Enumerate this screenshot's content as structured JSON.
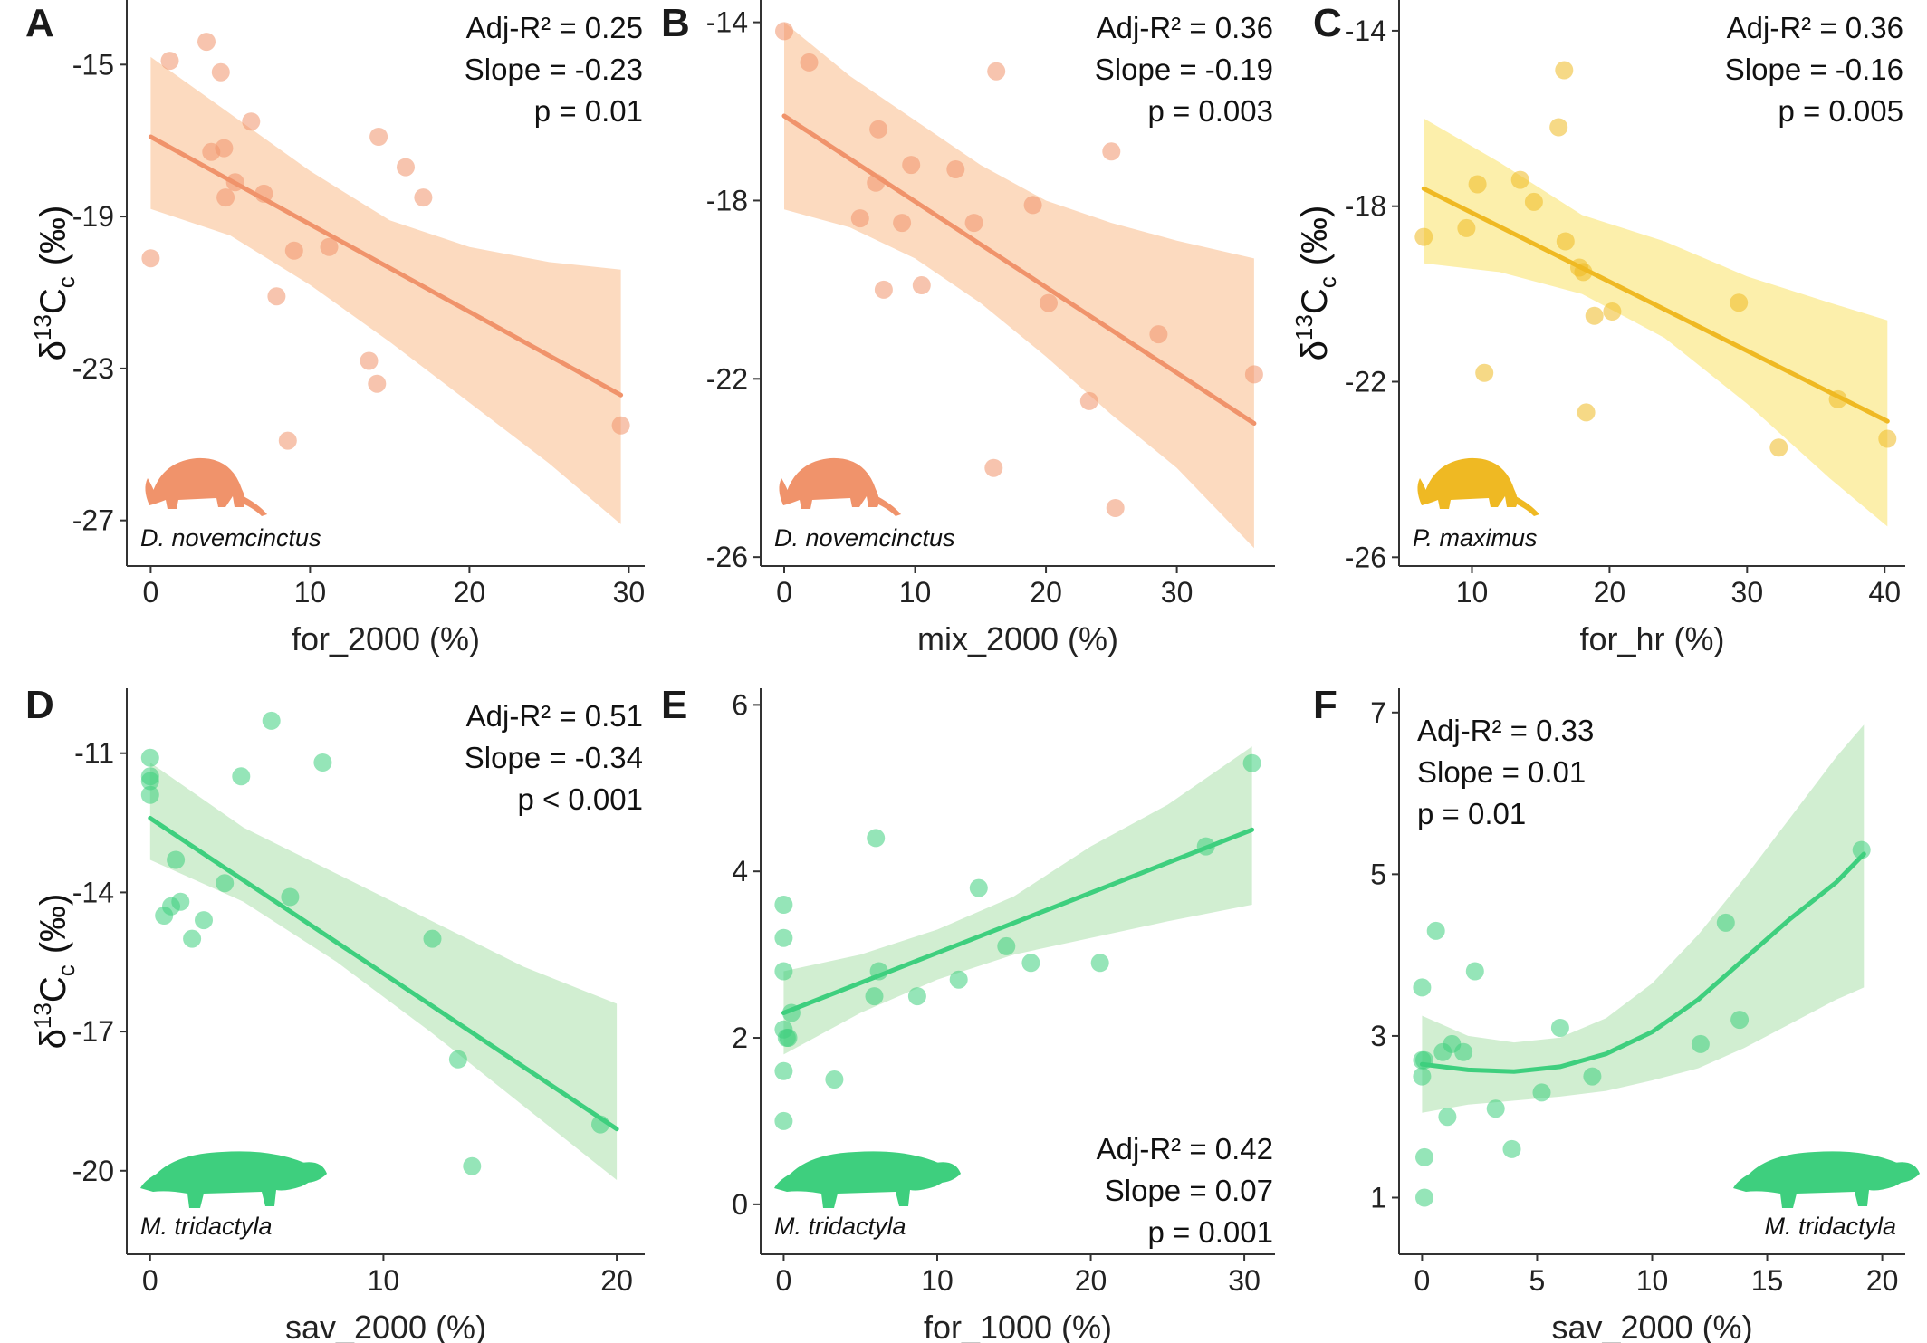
{
  "figure": {
    "ylabel": {
      "delta": "δ",
      "sup": "13",
      "main": "C",
      "sub": "c",
      "unit": "(‰)"
    }
  },
  "chart_data": [
    {
      "panel": "A",
      "type": "scatter",
      "fit": "linear",
      "color": "#f0936b",
      "band_color": "#fcd3b4",
      "species": "D. novemcinctus",
      "silhouette": "armadillo",
      "xlabel": "for_2000 (%)",
      "xlim": [
        -1.5,
        31
      ],
      "ylim": [
        -28.2,
        -13.3
      ],
      "xticks": [
        0,
        10,
        20,
        30
      ],
      "yticks": [
        -15,
        -19,
        -23,
        -27
      ],
      "x": [
        0,
        1.2,
        3.5,
        4.4,
        3.8,
        4.6,
        4.7,
        5.3,
        6.3,
        7.1,
        7.9,
        8.6,
        9.0,
        11.2,
        13.7,
        14.2,
        14.3,
        16.0,
        17.1,
        29.5
      ],
      "y": [
        -20.1,
        -14.9,
        -14.4,
        -15.2,
        -17.3,
        -17.2,
        -18.5,
        -18.1,
        -16.5,
        -18.4,
        -21.1,
        -24.9,
        -19.9,
        -19.8,
        -22.8,
        -23.4,
        -16.9,
        -17.7,
        -18.5,
        -24.5
      ],
      "fit_x": [
        0,
        29.5
      ],
      "fit_y": [
        -16.9,
        -23.7
      ],
      "band_x": [
        0,
        5,
        10,
        15,
        20,
        25,
        29.5
      ],
      "band_lo": [
        -18.8,
        -19.5,
        -20.8,
        -22.3,
        -23.9,
        -25.5,
        -27.1
      ],
      "band_hi": [
        -14.8,
        -16.3,
        -17.8,
        -19.1,
        -19.8,
        -20.2,
        -20.4
      ],
      "stats": [
        "Adj-R² = 0.25",
        "Slope = -0.23",
        "p = 0.01"
      ],
      "stats_pos": "top-right"
    },
    {
      "panel": "B",
      "type": "scatter",
      "fit": "linear",
      "color": "#f0936b",
      "band_color": "#fcd3b4",
      "species": "D. novemcinctus",
      "silhouette": "armadillo",
      "xlabel": "mix_2000 (%)",
      "xlim": [
        -1.8,
        37.5
      ],
      "ylim": [
        -26.2,
        -13.5
      ],
      "xticks": [
        0,
        10,
        20,
        30
      ],
      "yticks": [
        -14,
        -18,
        -22,
        -26
      ],
      "x": [
        0,
        1.9,
        5.8,
        7.0,
        7.2,
        7.6,
        9.0,
        9.7,
        10.5,
        13.1,
        14.5,
        16.0,
        16.2,
        19.0,
        20.2,
        23.3,
        25.0,
        25.3,
        28.6,
        35.9
      ],
      "y": [
        -14.2,
        -14.9,
        -18.4,
        -17.6,
        -16.4,
        -20.0,
        -18.5,
        -17.2,
        -19.9,
        -17.3,
        -18.5,
        -24.0,
        -15.1,
        -18.1,
        -20.3,
        -22.5,
        -16.9,
        -24.9,
        -21.0,
        -21.9
      ],
      "fit_x": [
        0,
        35.9
      ],
      "fit_y": [
        -16.1,
        -23.0
      ],
      "band_x": [
        0,
        5,
        10,
        15,
        20,
        25,
        30,
        35.9
      ],
      "band_lo": [
        -18.2,
        -18.6,
        -19.3,
        -20.3,
        -21.5,
        -22.8,
        -24.0,
        -25.8
      ],
      "band_hi": [
        -14.0,
        -15.2,
        -16.2,
        -17.2,
        -18.0,
        -18.5,
        -18.9,
        -19.3
      ],
      "stats": [
        "Adj-R² = 0.36",
        "Slope = -0.19",
        "p = 0.003"
      ],
      "stats_pos": "top-right"
    },
    {
      "panel": "C",
      "type": "scatter",
      "fit": "linear",
      "color": "#efb923",
      "band_color": "#fcec9c",
      "species": "P. maximus",
      "silhouette": "armadillo",
      "xlabel": "for_hr (%)",
      "xlim": [
        4.7,
        41.5
      ],
      "ylim": [
        -26.2,
        -13.3
      ],
      "xticks": [
        10,
        20,
        30,
        40
      ],
      "yticks": [
        -14,
        -18,
        -22,
        -26
      ],
      "x": [
        6.5,
        9.6,
        10.4,
        10.9,
        13.5,
        14.5,
        16.3,
        16.7,
        16.8,
        17.8,
        18.1,
        18.9,
        18.3,
        20.2,
        29.4,
        32.3,
        36.6,
        40.2
      ],
      "y": [
        -18.7,
        -18.5,
        -17.5,
        -21.8,
        -17.4,
        -17.9,
        -16.2,
        -14.9,
        -18.8,
        -19.4,
        -19.5,
        -20.5,
        -22.7,
        -20.4,
        -20.2,
        -23.5,
        -22.4,
        -23.3
      ],
      "fit_x": [
        6.5,
        40.2
      ],
      "fit_y": [
        -17.6,
        -22.9
      ],
      "band_x": [
        6.5,
        12,
        18,
        24,
        30,
        36,
        40.2
      ],
      "band_lo": [
        -19.3,
        -19.5,
        -20.0,
        -21.0,
        -22.5,
        -24.2,
        -25.3
      ],
      "band_hi": [
        -16.0,
        -17.0,
        -18.2,
        -18.8,
        -19.6,
        -20.2,
        -20.6
      ],
      "stats": [
        "Adj-R² = 0.36",
        "Slope = -0.16",
        "p = 0.005"
      ],
      "stats_pos": "top-right"
    },
    {
      "panel": "D",
      "type": "scatter",
      "fit": "linear",
      "color": "#3ecf7e",
      "band_color": "#c9ebc9",
      "species": "M. tridactyla",
      "silhouette": "anteater",
      "xlabel": "sav_2000 (%)",
      "xlim": [
        -1.0,
        21.2
      ],
      "ylim": [
        -21.8,
        -9.6
      ],
      "xticks": [
        0,
        10,
        20
      ],
      "yticks": [
        -11,
        -14,
        -17,
        -20
      ],
      "x": [
        0,
        0,
        0,
        0,
        0.6,
        0.9,
        1.1,
        1.3,
        1.8,
        2.3,
        3.2,
        3.9,
        5.2,
        6.0,
        7.4,
        12.1,
        13.2,
        13.8,
        19.3
      ],
      "y": [
        -11.1,
        -11.5,
        -11.6,
        -11.9,
        -14.5,
        -14.3,
        -13.3,
        -14.2,
        -15.0,
        -14.6,
        -13.8,
        -11.5,
        -10.3,
        -14.1,
        -11.2,
        -15.0,
        -17.6,
        -19.9,
        -19.0
      ],
      "fit_x": [
        0,
        20
      ],
      "fit_y": [
        -12.4,
        -19.1
      ],
      "band_x": [
        0,
        4,
        8,
        12,
        16,
        20
      ],
      "band_lo": [
        -13.3,
        -14.2,
        -15.5,
        -17.0,
        -18.6,
        -20.2
      ],
      "band_hi": [
        -11.2,
        -12.6,
        -13.6,
        -14.6,
        -15.6,
        -16.4
      ],
      "stats": [
        "Adj-R² = 0.51",
        "Slope = -0.34",
        "p < 0.001"
      ],
      "stats_pos": "top-right"
    },
    {
      "panel": "E",
      "type": "scatter",
      "fit": "linear",
      "color": "#3ecf7e",
      "band_color": "#c9ebc9",
      "species": "M. tridactyla",
      "silhouette": "anteater",
      "xlabel": "for_1000 (%)",
      "xlim": [
        -1.5,
        32
      ],
      "ylim": [
        -0.6,
        6.2
      ],
      "xticks": [
        0,
        10,
        20,
        30
      ],
      "yticks": [
        0,
        2,
        4,
        6
      ],
      "x": [
        0,
        0,
        0,
        0,
        0,
        0,
        0.2,
        0.3,
        0.5,
        3.3,
        5.9,
        6.0,
        6.2,
        8.7,
        11.4,
        12.7,
        14.5,
        16.1,
        20.6,
        27.5,
        30.5
      ],
      "y": [
        3.6,
        3.2,
        2.8,
        2.1,
        1.6,
        1.0,
        2.0,
        2.0,
        2.3,
        1.5,
        2.5,
        4.4,
        2.8,
        2.5,
        2.7,
        3.8,
        3.1,
        2.9,
        2.9,
        4.3,
        5.3
      ],
      "fit_x": [
        0,
        30.5
      ],
      "fit_y": [
        2.3,
        4.5
      ],
      "band_x": [
        0,
        5,
        10,
        15,
        20,
        25,
        30.5
      ],
      "band_lo": [
        1.8,
        2.3,
        2.7,
        3.0,
        3.2,
        3.4,
        3.6
      ],
      "band_hi": [
        2.8,
        3.0,
        3.3,
        3.7,
        4.3,
        4.8,
        5.5
      ],
      "stats": [
        "Adj-R² = 0.42",
        "Slope = 0.07",
        "p = 0.001"
      ],
      "stats_pos": "bottom-right"
    },
    {
      "panel": "F",
      "type": "scatter",
      "fit": "quadratic",
      "color": "#3ecf7e",
      "band_color": "#c9ebc9",
      "species": "M. tridactyla",
      "silhouette": "anteater",
      "xlabel": "sav_2000 (%)",
      "xlim": [
        -1.0,
        21.0
      ],
      "ylim": [
        0.3,
        7.3
      ],
      "xticks": [
        0,
        5,
        10,
        15,
        20
      ],
      "yticks": [
        1,
        3,
        5,
        7
      ],
      "x": [
        0,
        0,
        0,
        0.1,
        0.1,
        0.1,
        0.6,
        0.9,
        1.1,
        1.3,
        1.8,
        2.3,
        3.2,
        3.9,
        5.2,
        6.0,
        7.4,
        12.1,
        13.2,
        13.8,
        19.1
      ],
      "y": [
        3.6,
        2.7,
        2.5,
        1.5,
        1.0,
        2.7,
        4.3,
        2.8,
        2.0,
        2.9,
        2.8,
        3.8,
        2.1,
        1.6,
        2.3,
        3.1,
        2.5,
        2.9,
        4.4,
        3.2,
        5.3
      ],
      "fit_x": [
        0,
        2,
        4,
        6,
        8,
        10,
        12,
        14,
        16,
        18,
        19.2
      ],
      "fit_y": [
        2.65,
        2.58,
        2.56,
        2.62,
        2.78,
        3.05,
        3.45,
        3.95,
        4.45,
        4.9,
        5.25
      ],
      "band_x": [
        0,
        2,
        4,
        6,
        8,
        10,
        12,
        14,
        16,
        18,
        19.2
      ],
      "band_lo": [
        2.05,
        2.15,
        2.2,
        2.25,
        2.32,
        2.45,
        2.6,
        2.85,
        3.15,
        3.45,
        3.6
      ],
      "band_hi": [
        3.25,
        3.0,
        2.92,
        2.98,
        3.22,
        3.65,
        4.25,
        4.95,
        5.7,
        6.45,
        6.85
      ],
      "stats": [
        "Adj-R² = 0.33",
        "Slope = 0.01",
        "p = 0.01"
      ],
      "stats_pos": "top-left"
    }
  ]
}
